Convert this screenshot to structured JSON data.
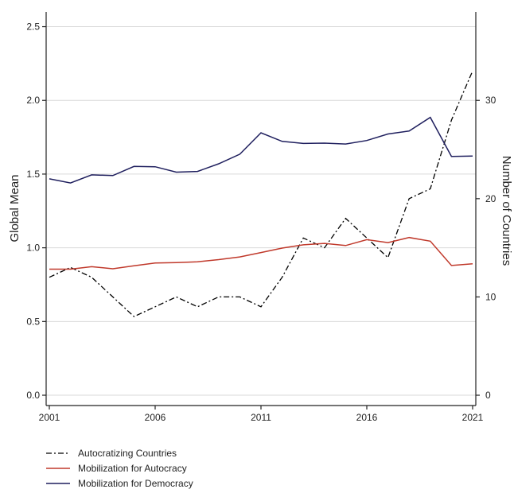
{
  "chart_data": {
    "type": "line",
    "x": [
      2001,
      2002,
      2003,
      2004,
      2005,
      2006,
      2007,
      2008,
      2009,
      2010,
      2011,
      2012,
      2013,
      2014,
      2015,
      2016,
      2017,
      2018,
      2019,
      2020,
      2021
    ],
    "xticks": [
      2001,
      2006,
      2011,
      2016,
      2021
    ],
    "xlim": [
      2001,
      2021
    ],
    "ylabel_left": "Global Mean",
    "ylabel_right": "Number of Countries",
    "ylim_left": [
      -0.07,
      2.6
    ],
    "ylim_right": [
      -1.05,
      39
    ],
    "yticks_left": [
      0.0,
      0.5,
      1.0,
      1.5,
      2.0,
      2.5
    ],
    "yticks_left_labels": [
      "0.0",
      "0.5",
      "1.0",
      "1.5",
      "2.0",
      "2.5"
    ],
    "yticks_right": [
      0,
      10,
      20,
      30
    ],
    "grid": true,
    "legend_position": "bottom-left",
    "series": [
      {
        "name": "Autocratizing Countries",
        "axis": "right",
        "style": "dashdot",
        "color": "#000000",
        "values": [
          12,
          13,
          12,
          10,
          8,
          9,
          10,
          9,
          10,
          10,
          9,
          12,
          16,
          15,
          18,
          16,
          14,
          20,
          21,
          28,
          33
        ]
      },
      {
        "name": "Mobilization for Autocracy",
        "axis": "left",
        "style": "solid",
        "color": "#c0392b",
        "values": [
          0.855,
          0.855,
          0.872,
          0.858,
          0.878,
          0.897,
          0.9,
          0.905,
          0.92,
          0.938,
          0.968,
          0.998,
          1.02,
          1.03,
          1.015,
          1.055,
          1.035,
          1.07,
          1.045,
          0.88,
          0.892
        ]
      },
      {
        "name": "Mobilization for Democracy",
        "axis": "left",
        "style": "solid",
        "color": "#1f1f5e",
        "values": [
          1.468,
          1.44,
          1.495,
          1.49,
          1.552,
          1.55,
          1.513,
          1.518,
          1.57,
          1.635,
          1.78,
          1.722,
          1.708,
          1.71,
          1.704,
          1.728,
          1.772,
          1.792,
          1.885,
          1.62,
          1.622
        ]
      }
    ]
  }
}
